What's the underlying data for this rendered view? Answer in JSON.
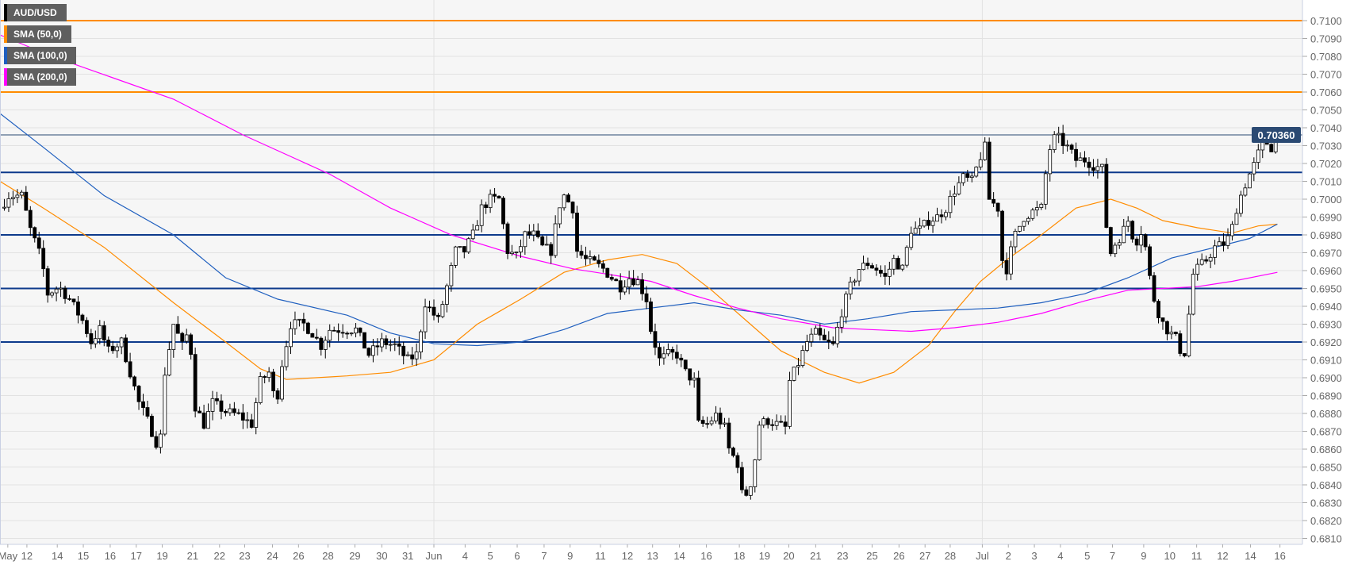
{
  "chart_data": {
    "type": "candlestick",
    "symbol": "AUD/USD",
    "legend": [
      {
        "label": "AUD/USD",
        "color": "#000000"
      },
      {
        "label": "SMA (50,0)",
        "color": "#ff8c00"
      },
      {
        "label": "SMA (100,0)",
        "color": "#1f5fbf"
      },
      {
        "label": "SMA (200,0)",
        "color": "#ff00ff"
      }
    ],
    "ylim": [
      0.6805,
      0.7115
    ],
    "xlim": [
      0,
      150
    ],
    "y_ticks": [
      "0.7100",
      "0.7090",
      "0.7080",
      "0.7070",
      "0.7060",
      "0.7050",
      "0.7040",
      "0.7030",
      "0.7020",
      "0.7010",
      "0.7000",
      "0.6990",
      "0.6980",
      "0.6970",
      "0.6960",
      "0.6950",
      "0.6940",
      "0.6930",
      "0.6920",
      "0.6910",
      "0.6900",
      "0.6890",
      "0.6880",
      "0.6870",
      "0.6860",
      "0.6850",
      "0.6840",
      "0.6830",
      "0.6820",
      "0.6810"
    ],
    "x_ticks": [
      {
        "t": 0.9,
        "label": "May"
      },
      {
        "t": 3.1,
        "label": "12"
      },
      {
        "t": 6.6,
        "label": "14"
      },
      {
        "t": 9.6,
        "label": "15"
      },
      {
        "t": 12.7,
        "label": "16"
      },
      {
        "t": 15.7,
        "label": "17"
      },
      {
        "t": 18.7,
        "label": "19"
      },
      {
        "t": 22.2,
        "label": "21"
      },
      {
        "t": 25.3,
        "label": "22"
      },
      {
        "t": 28.2,
        "label": "23"
      },
      {
        "t": 31.4,
        "label": "24"
      },
      {
        "t": 34.4,
        "label": "26"
      },
      {
        "t": 37.8,
        "label": "28"
      },
      {
        "t": 40.9,
        "label": "29"
      },
      {
        "t": 44.0,
        "label": "30"
      },
      {
        "t": 47.0,
        "label": "31"
      },
      {
        "t": 50.0,
        "label": "Jun",
        "month": true
      },
      {
        "t": 53.6,
        "label": "4"
      },
      {
        "t": 56.5,
        "label": "5"
      },
      {
        "t": 59.6,
        "label": "6"
      },
      {
        "t": 62.7,
        "label": "7"
      },
      {
        "t": 65.7,
        "label": "9"
      },
      {
        "t": 69.2,
        "label": "11"
      },
      {
        "t": 72.3,
        "label": "12"
      },
      {
        "t": 75.2,
        "label": "13"
      },
      {
        "t": 78.3,
        "label": "14"
      },
      {
        "t": 81.4,
        "label": "16"
      },
      {
        "t": 85.2,
        "label": "18"
      },
      {
        "t": 88.1,
        "label": "19"
      },
      {
        "t": 90.9,
        "label": "20"
      },
      {
        "t": 94.0,
        "label": "21"
      },
      {
        "t": 97.1,
        "label": "23"
      },
      {
        "t": 100.5,
        "label": "25"
      },
      {
        "t": 103.6,
        "label": "26"
      },
      {
        "t": 106.6,
        "label": "27"
      },
      {
        "t": 109.5,
        "label": "28"
      },
      {
        "t": 113.2,
        "label": "Jul",
        "month": true
      },
      {
        "t": 116.2,
        "label": "2"
      },
      {
        "t": 119.2,
        "label": "3"
      },
      {
        "t": 122.2,
        "label": "4"
      },
      {
        "t": 125.3,
        "label": "5"
      },
      {
        "t": 128.2,
        "label": "7"
      },
      {
        "t": 131.8,
        "label": "9"
      },
      {
        "t": 134.8,
        "label": "10"
      },
      {
        "t": 137.9,
        "label": "11"
      },
      {
        "t": 140.9,
        "label": "12"
      },
      {
        "t": 144.1,
        "label": "14"
      },
      {
        "t": 147.5,
        "label": "16"
      }
    ],
    "resistance_lines": [
      {
        "price": 0.71,
        "color": "#ff8c00"
      },
      {
        "price": 0.706,
        "color": "#ff8c00"
      }
    ],
    "support_lines": [
      {
        "price": 0.7015,
        "color": "#0d3a8c"
      },
      {
        "price": 0.698,
        "color": "#0d3a8c"
      },
      {
        "price": 0.695,
        "color": "#0d3a8c"
      },
      {
        "price": 0.692,
        "color": "#0d3a8c"
      }
    ],
    "last_price": {
      "value": 0.7036,
      "label": "0.70360",
      "color": "#2b4a73"
    },
    "price_path": [
      [
        0,
        0.6995
      ],
      [
        1,
        0.7002
      ],
      [
        2.5,
        0.7002
      ],
      [
        3.5,
        0.6983
      ],
      [
        4.8,
        0.6966
      ],
      [
        5.5,
        0.6947
      ],
      [
        6.8,
        0.6951
      ],
      [
        8,
        0.6944
      ],
      [
        9.5,
        0.6932
      ],
      [
        10.5,
        0.692
      ],
      [
        11.5,
        0.6927
      ],
      [
        12.5,
        0.6915
      ],
      [
        14,
        0.692
      ],
      [
        15,
        0.6903
      ],
      [
        16,
        0.6886
      ],
      [
        17,
        0.6876
      ],
      [
        18,
        0.6864
      ],
      [
        18.5,
        0.6867
      ],
      [
        19,
        0.6903
      ],
      [
        20,
        0.693
      ],
      [
        21,
        0.6918
      ],
      [
        21.8,
        0.6927
      ],
      [
        22.5,
        0.6884
      ],
      [
        23.5,
        0.6874
      ],
      [
        24.5,
        0.6886
      ],
      [
        26,
        0.6881
      ],
      [
        27.5,
        0.6879
      ],
      [
        29,
        0.6874
      ],
      [
        30,
        0.6898
      ],
      [
        31,
        0.6903
      ],
      [
        31.8,
        0.6884
      ],
      [
        32.5,
        0.6908
      ],
      [
        33.5,
        0.693
      ],
      [
        35,
        0.693
      ],
      [
        36,
        0.6925
      ],
      [
        37,
        0.6918
      ],
      [
        38,
        0.6927
      ],
      [
        39.5,
        0.6927
      ],
      [
        41,
        0.6927
      ],
      [
        42.5,
        0.6913
      ],
      [
        44,
        0.692
      ],
      [
        45.5,
        0.6918
      ],
      [
        47,
        0.691
      ],
      [
        48,
        0.6913
      ],
      [
        49,
        0.6942
      ],
      [
        50.5,
        0.6932
      ],
      [
        51.5,
        0.6951
      ],
      [
        52.5,
        0.6971
      ],
      [
        53.5,
        0.6971
      ],
      [
        54.5,
        0.698
      ],
      [
        55.5,
        0.6995
      ],
      [
        56.5,
        0.7
      ],
      [
        57.5,
        0.7
      ],
      [
        58.5,
        0.6971
      ],
      [
        59.5,
        0.6968
      ],
      [
        60.5,
        0.698
      ],
      [
        61.5,
        0.698
      ],
      [
        62.5,
        0.6973
      ],
      [
        63.5,
        0.6971
      ],
      [
        64.5,
        0.6997
      ],
      [
        65,
        0.7002
      ],
      [
        66,
        0.6995
      ],
      [
        66.5,
        0.6971
      ],
      [
        67.5,
        0.6966
      ],
      [
        68.5,
        0.6964
      ],
      [
        69.5,
        0.6961
      ],
      [
        70.5,
        0.6956
      ],
      [
        71.5,
        0.6951
      ],
      [
        72.5,
        0.6956
      ],
      [
        73.5,
        0.6954
      ],
      [
        74.5,
        0.6944
      ],
      [
        75,
        0.6927
      ],
      [
        76,
        0.691
      ],
      [
        77,
        0.6913
      ],
      [
        78,
        0.6913
      ],
      [
        79,
        0.6903
      ],
      [
        80,
        0.6898
      ],
      [
        80.5,
        0.6874
      ],
      [
        81.5,
        0.6874
      ],
      [
        82.5,
        0.6879
      ],
      [
        83.5,
        0.6872
      ],
      [
        84,
        0.686
      ],
      [
        85,
        0.6852
      ],
      [
        85.5,
        0.6835
      ],
      [
        86.2,
        0.6835
      ],
      [
        86.8,
        0.6847
      ],
      [
        87.5,
        0.6874
      ],
      [
        88.5,
        0.6876
      ],
      [
        89.5,
        0.6874
      ],
      [
        90.5,
        0.6872
      ],
      [
        91,
        0.6898
      ],
      [
        92,
        0.6908
      ],
      [
        93,
        0.692
      ],
      [
        94,
        0.6925
      ],
      [
        95,
        0.692
      ],
      [
        96,
        0.6918
      ],
      [
        97,
        0.6937
      ],
      [
        98,
        0.6951
      ],
      [
        99,
        0.6961
      ],
      [
        100,
        0.6964
      ],
      [
        101,
        0.6961
      ],
      [
        102,
        0.6956
      ],
      [
        103,
        0.6966
      ],
      [
        104,
        0.6961
      ],
      [
        105,
        0.6983
      ],
      [
        106,
        0.6983
      ],
      [
        107,
        0.6988
      ],
      [
        108,
        0.699
      ],
      [
        109,
        0.6995
      ],
      [
        110,
        0.7005
      ],
      [
        111,
        0.7012
      ],
      [
        112,
        0.701
      ],
      [
        113,
        0.7024
      ],
      [
        113.5,
        0.7029
      ],
      [
        114,
        0.7
      ],
      [
        115,
        0.6995
      ],
      [
        115.5,
        0.6966
      ],
      [
        116,
        0.6961
      ],
      [
        116.5,
        0.6971
      ],
      [
        117,
        0.698
      ],
      [
        118,
        0.699
      ],
      [
        119,
        0.6993
      ],
      [
        120,
        0.6995
      ],
      [
        120.5,
        0.7014
      ],
      [
        121.2,
        0.7034
      ],
      [
        122,
        0.7034
      ],
      [
        123,
        0.7029
      ],
      [
        124,
        0.7022
      ],
      [
        125,
        0.7022
      ],
      [
        126,
        0.7019
      ],
      [
        127,
        0.7017
      ],
      [
        127.5,
        0.6985
      ],
      [
        127.8,
        0.6968
      ],
      [
        128.5,
        0.6975
      ],
      [
        129.2,
        0.698
      ],
      [
        130,
        0.6988
      ],
      [
        130.8,
        0.6975
      ],
      [
        131.5,
        0.6982
      ],
      [
        132,
        0.6973
      ],
      [
        132.5,
        0.6956
      ],
      [
        133,
        0.6944
      ],
      [
        133.8,
        0.6932
      ],
      [
        134.5,
        0.6927
      ],
      [
        135.5,
        0.6922
      ],
      [
        136.2,
        0.6913
      ],
      [
        136.8,
        0.6915
      ],
      [
        137.2,
        0.6956
      ],
      [
        138,
        0.6961
      ],
      [
        139,
        0.6966
      ],
      [
        140,
        0.6973
      ],
      [
        141,
        0.6975
      ],
      [
        141.8,
        0.698
      ],
      [
        142.5,
        0.6995
      ],
      [
        143.2,
        0.7005
      ],
      [
        144,
        0.7014
      ],
      [
        144.8,
        0.7022
      ],
      [
        145.5,
        0.7034
      ],
      [
        146.5,
        0.7029
      ],
      [
        147.2,
        0.7036
      ]
    ],
    "sma": [
      {
        "name": "SMA (50,0)",
        "color": "#ff8c00",
        "points": [
          [
            0,
            0.701
          ],
          [
            5,
            0.6995
          ],
          [
            12,
            0.6973
          ],
          [
            20,
            0.6942
          ],
          [
            26,
            0.692
          ],
          [
            30,
            0.6905
          ],
          [
            33,
            0.6899
          ],
          [
            40,
            0.6901
          ],
          [
            45,
            0.6903
          ],
          [
            50,
            0.691
          ],
          [
            55,
            0.693
          ],
          [
            60,
            0.6944
          ],
          [
            65,
            0.6959
          ],
          [
            70,
            0.6966
          ],
          [
            74,
            0.6969
          ],
          [
            78,
            0.6964
          ],
          [
            82,
            0.6949
          ],
          [
            86,
            0.6932
          ],
          [
            90,
            0.6915
          ],
          [
            95,
            0.6903
          ],
          [
            99,
            0.6897
          ],
          [
            103,
            0.6903
          ],
          [
            107,
            0.6918
          ],
          [
            110,
            0.6937
          ],
          [
            113,
            0.6954
          ],
          [
            116,
            0.6966
          ],
          [
            120,
            0.698
          ],
          [
            124,
            0.6995
          ],
          [
            128,
            0.7
          ],
          [
            131,
            0.6995
          ],
          [
            134,
            0.6988
          ],
          [
            138,
            0.6984
          ],
          [
            142,
            0.6981
          ],
          [
            145,
            0.6985
          ],
          [
            147.2,
            0.6986
          ]
        ]
      },
      {
        "name": "SMA (100,0)",
        "color": "#1f5fbf",
        "points": [
          [
            0,
            0.7048
          ],
          [
            5,
            0.7029
          ],
          [
            12,
            0.7002
          ],
          [
            20,
            0.698
          ],
          [
            26,
            0.6956
          ],
          [
            32,
            0.6944
          ],
          [
            40,
            0.6935
          ],
          [
            45,
            0.6925
          ],
          [
            50,
            0.6919
          ],
          [
            55,
            0.6918
          ],
          [
            60,
            0.692
          ],
          [
            65,
            0.6927
          ],
          [
            70,
            0.6936
          ],
          [
            75,
            0.6939
          ],
          [
            80,
            0.6942
          ],
          [
            85,
            0.6938
          ],
          [
            90,
            0.6935
          ],
          [
            95,
            0.693
          ],
          [
            100,
            0.6933
          ],
          [
            105,
            0.6937
          ],
          [
            110,
            0.6938
          ],
          [
            115,
            0.6939
          ],
          [
            120,
            0.6942
          ],
          [
            125,
            0.6947
          ],
          [
            130,
            0.6956
          ],
          [
            135,
            0.6967
          ],
          [
            140,
            0.6973
          ],
          [
            144,
            0.6978
          ],
          [
            147.2,
            0.6986
          ]
        ]
      },
      {
        "name": "SMA (200,0)",
        "color": "#ff00ff",
        "points": [
          [
            0,
            0.7092
          ],
          [
            6,
            0.708
          ],
          [
            13,
            0.7068
          ],
          [
            20,
            0.7056
          ],
          [
            28,
            0.7036
          ],
          [
            38,
            0.7014
          ],
          [
            45,
            0.6995
          ],
          [
            52,
            0.698
          ],
          [
            60,
            0.6968
          ],
          [
            66,
            0.6961
          ],
          [
            70,
            0.6958
          ],
          [
            75,
            0.6954
          ],
          [
            80,
            0.6946
          ],
          [
            85,
            0.6939
          ],
          [
            90,
            0.6933
          ],
          [
            96,
            0.6928
          ],
          [
            100,
            0.6927
          ],
          [
            105,
            0.6926
          ],
          [
            110,
            0.6928
          ],
          [
            115,
            0.6931
          ],
          [
            120,
            0.6936
          ],
          [
            125,
            0.6943
          ],
          [
            130,
            0.6949
          ],
          [
            134,
            0.695
          ],
          [
            138,
            0.6951
          ],
          [
            142,
            0.6954
          ],
          [
            147.2,
            0.6959
          ]
        ]
      }
    ]
  }
}
